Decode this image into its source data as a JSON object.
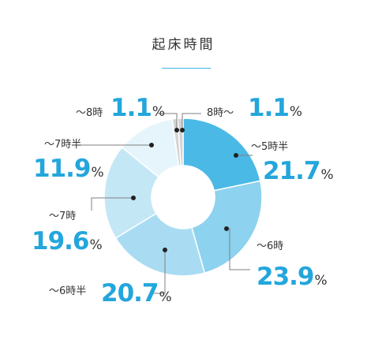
{
  "chart_data": {
    "type": "pie",
    "title": "起床時間",
    "categories": [
      "～5時半",
      "～6時",
      "～6時半",
      "～7時",
      "～7時半",
      "～8時",
      "8時～"
    ],
    "values": [
      21.7,
      23.9,
      20.7,
      19.6,
      11.9,
      1.1,
      1.1
    ],
    "value_labels": [
      "21.7",
      "23.9",
      "20.7",
      "19.6",
      "11.9",
      "1.1",
      "1.1"
    ],
    "unit": "%",
    "donut": true,
    "start": "top",
    "direction": "clockwise",
    "colors": [
      "#4bb9e6",
      "#8dd2ef",
      "#a9dcf2",
      "#c4e7f6",
      "#e6f5fc",
      "#d3d3d3",
      "#d3d3d3"
    ],
    "label_color": "#23a6dc",
    "leader_color": "#7f7f7f"
  }
}
